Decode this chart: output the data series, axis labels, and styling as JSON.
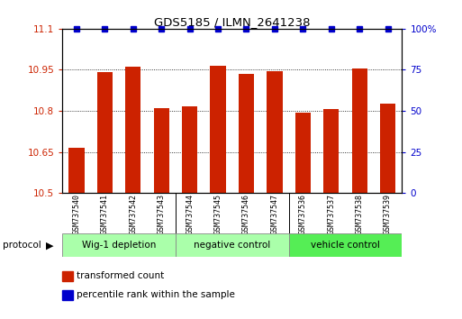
{
  "title": "GDS5185 / ILMN_2641238",
  "samples": [
    "GSM737540",
    "GSM737541",
    "GSM737542",
    "GSM737543",
    "GSM737544",
    "GSM737545",
    "GSM737546",
    "GSM737547",
    "GSM737536",
    "GSM737537",
    "GSM737538",
    "GSM737539"
  ],
  "bar_values": [
    10.665,
    10.94,
    10.96,
    10.81,
    10.815,
    10.965,
    10.935,
    10.945,
    10.795,
    10.805,
    10.955,
    10.825
  ],
  "percentile_values": [
    100,
    100,
    100,
    100,
    100,
    100,
    100,
    100,
    100,
    100,
    100,
    100
  ],
  "bar_color": "#cc2200",
  "percentile_color": "#0000cc",
  "ylim_left": [
    10.5,
    11.1
  ],
  "ylim_right": [
    0,
    100
  ],
  "yticks_left": [
    10.5,
    10.65,
    10.8,
    10.95,
    11.1
  ],
  "yticks_right": [
    0,
    25,
    50,
    75,
    100
  ],
  "ytick_labels_left": [
    "10.5",
    "10.65",
    "10.8",
    "10.95",
    "11.1"
  ],
  "ytick_labels_right": [
    "0",
    "25",
    "50",
    "75",
    "100%"
  ],
  "grid_yticks": [
    10.65,
    10.8,
    10.95,
    11.1
  ],
  "bar_width": 0.55,
  "group_colors": [
    "#aaffaa",
    "#aaffaa",
    "#55ee55"
  ],
  "group_labels": [
    "Wig-1 depletion",
    "negative control",
    "vehicle control"
  ],
  "group_ranges": [
    [
      0,
      4
    ],
    [
      4,
      8
    ],
    [
      8,
      12
    ]
  ],
  "legend_items": [
    {
      "label": "transformed count",
      "color": "#cc2200"
    },
    {
      "label": "percentile rank within the sample",
      "color": "#0000cc"
    }
  ],
  "protocol_label": "protocol"
}
